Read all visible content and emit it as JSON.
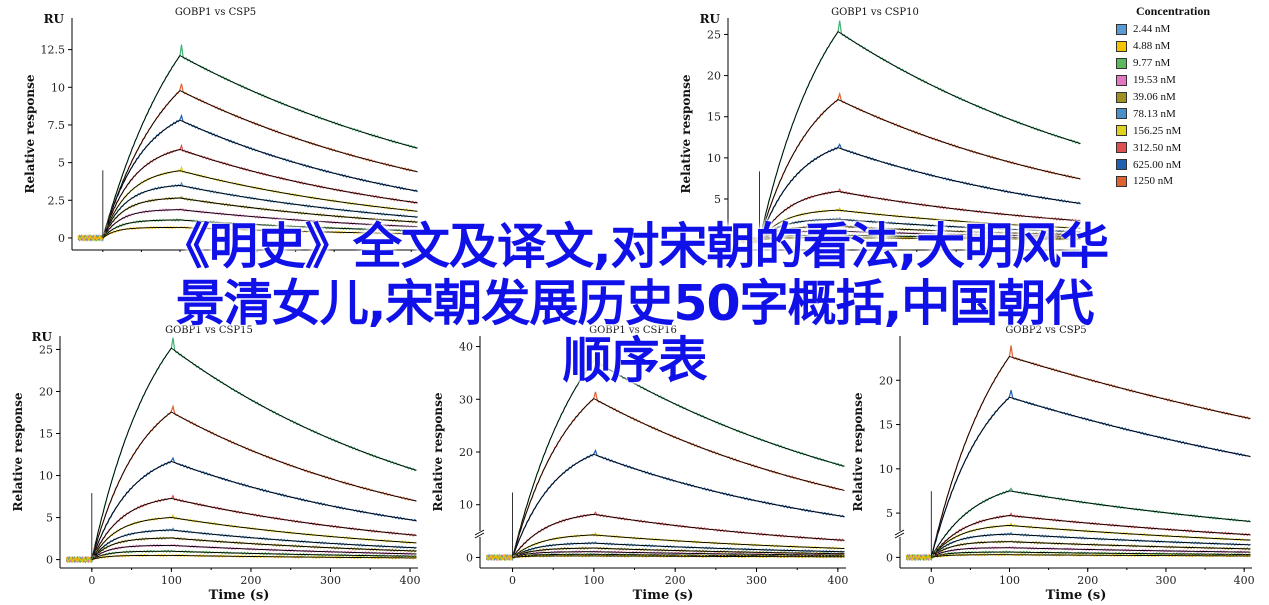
{
  "overlay_text": {
    "line1": "《明史》全文及译文,对宋朝的看法,大明风华",
    "line2": "景清女儿,宋朝发展历史50字概括,中国朝代",
    "line3": "顺序表"
  },
  "legend": {
    "title": "Concentration",
    "items": [
      {
        "label": "2.44 nM",
        "color": "#5b9bd5"
      },
      {
        "label": "4.88 nM",
        "color": "#f5c300"
      },
      {
        "label": "9.77 nM",
        "color": "#5cb85c"
      },
      {
        "label": "19.53 nM",
        "color": "#e377c2"
      },
      {
        "label": "39.06 nM",
        "color": "#a09020"
      },
      {
        "label": "78.13 nM",
        "color": "#4a90c8"
      },
      {
        "label": "156.25 nM",
        "color": "#e0d020"
      },
      {
        "label": "312.50 nM",
        "color": "#e05050"
      },
      {
        "label": "625.00 nM",
        "color": "#2060b0"
      },
      {
        "label": "1250 nM",
        "color": "#e06030"
      }
    ]
  },
  "chart_data": [
    {
      "type": "line",
      "title": "GOBP1 vs CSP5",
      "corner_label": "RU",
      "ylabel": "Relative response",
      "xlabel": "",
      "xlim": [
        -40,
        410
      ],
      "ylim": [
        -0.8,
        14.6
      ],
      "yticks": [
        0,
        2.5,
        5,
        7.5,
        10,
        12.5
      ],
      "ytick_labels": [
        "0",
        "2.5",
        "5",
        "7.5",
        "10",
        "12.5"
      ],
      "xticks": [],
      "assoc_end": 100,
      "series": [
        {
          "color": "#3cb371",
          "amp": 20.4,
          "k": 0.009,
          "r": 0.0023,
          "pre": 0.0
        },
        {
          "color": "#e06030",
          "amp": 14.0,
          "k": 0.012,
          "r": 0.0026,
          "pre": 0.0
        },
        {
          "color": "#2060b0",
          "amp": 9.2,
          "k": 0.019,
          "r": 0.003,
          "pre": 0.0
        },
        {
          "color": "#e05050",
          "amp": 6.4,
          "k": 0.025,
          "r": 0.003,
          "pre": 0.0
        },
        {
          "color": "#e0d020",
          "amp": 4.7,
          "k": 0.03,
          "r": 0.003,
          "pre": 0.0
        },
        {
          "color": "#4a90c8",
          "amp": 3.6,
          "k": 0.035,
          "r": 0.003,
          "pre": 0.0
        },
        {
          "color": "#a09020",
          "amp": 2.7,
          "k": 0.04,
          "r": 0.003,
          "pre": 0.0
        },
        {
          "color": "#e377c2",
          "amp": 1.9,
          "k": 0.045,
          "r": 0.003,
          "pre": 0.0
        },
        {
          "color": "#5cb85c",
          "amp": 1.2,
          "k": 0.05,
          "r": 0.003,
          "pre": 0.0
        },
        {
          "color": "#f5c300",
          "amp": 0.7,
          "k": 0.06,
          "r": 0.003,
          "pre": 0.0
        }
      ]
    },
    {
      "type": "line",
      "title": "GOBP1 vs CSP10",
      "corner_label": "RU",
      "ylabel": "Relative response",
      "xlabel": "",
      "xlim": [
        -40,
        410
      ],
      "ylim": [
        -1.2,
        27
      ],
      "yticks": [
        0,
        5,
        10,
        15,
        20,
        25
      ],
      "ytick_labels": [
        "0",
        "5",
        "10",
        "15",
        "20",
        "25"
      ],
      "xticks": [],
      "assoc_end": 100,
      "series": [
        {
          "color": "#3cb371",
          "amp": 38.0,
          "k": 0.011,
          "r": 0.0025,
          "pre": 0.0
        },
        {
          "color": "#e06030",
          "amp": 22.0,
          "k": 0.015,
          "r": 0.0027,
          "pre": 0.0
        },
        {
          "color": "#2060b0",
          "amp": 13.0,
          "k": 0.02,
          "r": 0.003,
          "pre": 0.0
        },
        {
          "color": "#e05050",
          "amp": 6.4,
          "k": 0.026,
          "r": 0.003,
          "pre": 0.0
        },
        {
          "color": "#e0d020",
          "amp": 3.8,
          "k": 0.032,
          "r": 0.003,
          "pre": 0.0
        },
        {
          "color": "#4a90c8",
          "amp": 2.6,
          "k": 0.038,
          "r": 0.003,
          "pre": 0.0
        },
        {
          "color": "#a09020",
          "amp": 1.7,
          "k": 0.045,
          "r": 0.003,
          "pre": 0.0
        },
        {
          "color": "#e377c2",
          "amp": 1.1,
          "k": 0.05,
          "r": 0.003,
          "pre": 0.0
        },
        {
          "color": "#5cb85c",
          "amp": 0.6,
          "k": 0.055,
          "r": 0.003,
          "pre": 0.0
        },
        {
          "color": "#f5c300",
          "amp": 0.3,
          "k": 0.06,
          "r": 0.003,
          "pre": 0.0
        }
      ]
    },
    {
      "type": "line",
      "title": "GOBP1 vs CSP15",
      "corner_label": "RU",
      "ylabel": "Relative response",
      "xlabel": "Time (s)",
      "xlim": [
        -40,
        410
      ],
      "ylim": [
        -1.0,
        26.6
      ],
      "yticks": [
        0,
        5,
        10,
        15,
        20,
        25
      ],
      "ytick_labels": [
        "0",
        "5",
        "10",
        "15",
        "20",
        "25"
      ],
      "xticks": [
        0,
        100,
        200,
        300,
        400
      ],
      "xtick_labels": [
        "0",
        "100",
        "200",
        "300",
        "400"
      ],
      "assoc_end": 100,
      "series": [
        {
          "color": "#3cb371",
          "amp": 36.0,
          "k": 0.012,
          "r": 0.0028,
          "pre": 0.0
        },
        {
          "color": "#e06030",
          "amp": 22.0,
          "k": 0.016,
          "r": 0.003,
          "pre": 0.0
        },
        {
          "color": "#2060b0",
          "amp": 13.5,
          "k": 0.02,
          "r": 0.003,
          "pre": 0.0
        },
        {
          "color": "#e05050",
          "amp": 7.8,
          "k": 0.027,
          "r": 0.003,
          "pre": 0.0
        },
        {
          "color": "#e0d020",
          "amp": 5.2,
          "k": 0.033,
          "r": 0.003,
          "pre": 0.0
        },
        {
          "color": "#4a90c8",
          "amp": 3.6,
          "k": 0.038,
          "r": 0.003,
          "pre": 0.0
        },
        {
          "color": "#a09020",
          "amp": 2.6,
          "k": 0.044,
          "r": 0.003,
          "pre": 0.0
        },
        {
          "color": "#e377c2",
          "amp": 1.7,
          "k": 0.05,
          "r": 0.003,
          "pre": 0.0
        },
        {
          "color": "#5cb85c",
          "amp": 1.0,
          "k": 0.055,
          "r": 0.003,
          "pre": 0.0
        },
        {
          "color": "#f5c300",
          "amp": 0.5,
          "k": 0.06,
          "r": 0.003,
          "pre": 0.0
        }
      ]
    },
    {
      "type": "line",
      "title": "GOBP1 vs CSP16",
      "corner_label": "",
      "ylabel": "Relative response",
      "xlabel": "Time (s)",
      "xlim": [
        -40,
        410
      ],
      "ylim": [
        -2,
        42
      ],
      "yticks": [
        0,
        10,
        20,
        30,
        40
      ],
      "ytick_labels": [
        "0",
        "10",
        "20",
        "30",
        "40"
      ],
      "xticks": [
        0,
        100,
        200,
        300,
        400
      ],
      "xtick_labels": [
        "0",
        "100",
        "200",
        "300",
        "400"
      ],
      "assoc_end": 100,
      "axis_break": true,
      "series": [
        {
          "color": "#3cb371",
          "amp": 56.0,
          "k": 0.011,
          "r": 0.0025,
          "pre": 0.0
        },
        {
          "color": "#e06030",
          "amp": 40.0,
          "k": 0.014,
          "r": 0.0028,
          "pre": 0.0
        },
        {
          "color": "#2060b0",
          "amp": 23.0,
          "k": 0.019,
          "r": 0.003,
          "pre": 0.0
        },
        {
          "color": "#e05050",
          "amp": 9.0,
          "k": 0.024,
          "r": 0.003,
          "pre": 0.0
        },
        {
          "color": "#e0d020",
          "amp": 4.5,
          "k": 0.03,
          "r": 0.003,
          "pre": 0.0
        },
        {
          "color": "#4a90c8",
          "amp": 2.8,
          "k": 0.036,
          "r": 0.003,
          "pre": 0.0
        },
        {
          "color": "#a09020",
          "amp": 1.8,
          "k": 0.042,
          "r": 0.003,
          "pre": 0.0
        },
        {
          "color": "#e377c2",
          "amp": 1.1,
          "k": 0.048,
          "r": 0.003,
          "pre": 0.0
        },
        {
          "color": "#5cb85c",
          "amp": 0.6,
          "k": 0.054,
          "r": 0.003,
          "pre": 0.0
        },
        {
          "color": "#f5c300",
          "amp": 0.3,
          "k": 0.06,
          "r": 0.003,
          "pre": 0.0
        }
      ]
    },
    {
      "type": "line",
      "title": "GOBP2 vs CSP5",
      "corner_label": "",
      "ylabel": "Relative response",
      "xlabel": "Time (s)",
      "xlim": [
        -40,
        410
      ],
      "ylim": [
        -1.2,
        25
      ],
      "yticks": [
        0,
        5,
        10,
        15,
        20
      ],
      "ytick_labels": [
        "0",
        "5",
        "10",
        "15",
        "20"
      ],
      "xticks": [
        0,
        100,
        200,
        300,
        400
      ],
      "xtick_labels": [
        "0",
        "100",
        "200",
        "300",
        "400"
      ],
      "assoc_end": 100,
      "axis_break": true,
      "series": [
        {
          "color": "#e06030",
          "amp": 34.0,
          "k": 0.011,
          "r": 0.0012,
          "pre": 0.0
        },
        {
          "color": "#2060b0",
          "amp": 24.0,
          "k": 0.014,
          "r": 0.0015,
          "pre": 0.0
        },
        {
          "color": "#3cb371",
          "amp": 9.0,
          "k": 0.018,
          "r": 0.002,
          "pre": 0.0
        },
        {
          "color": "#e05050",
          "amp": 5.2,
          "k": 0.024,
          "r": 0.002,
          "pre": 0.0
        },
        {
          "color": "#e0d020",
          "amp": 3.8,
          "k": 0.03,
          "r": 0.002,
          "pre": 0.0
        },
        {
          "color": "#4a90c8",
          "amp": 2.7,
          "k": 0.036,
          "r": 0.002,
          "pre": 0.0
        },
        {
          "color": "#a09020",
          "amp": 1.8,
          "k": 0.042,
          "r": 0.002,
          "pre": 0.0
        },
        {
          "color": "#e377c2",
          "amp": 1.1,
          "k": 0.048,
          "r": 0.002,
          "pre": 0.0
        },
        {
          "color": "#5cb85c",
          "amp": 0.6,
          "k": 0.054,
          "r": 0.002,
          "pre": 0.0
        },
        {
          "color": "#f5c300",
          "amp": 0.3,
          "k": 0.06,
          "r": 0.002,
          "pre": 0.0
        }
      ]
    }
  ]
}
